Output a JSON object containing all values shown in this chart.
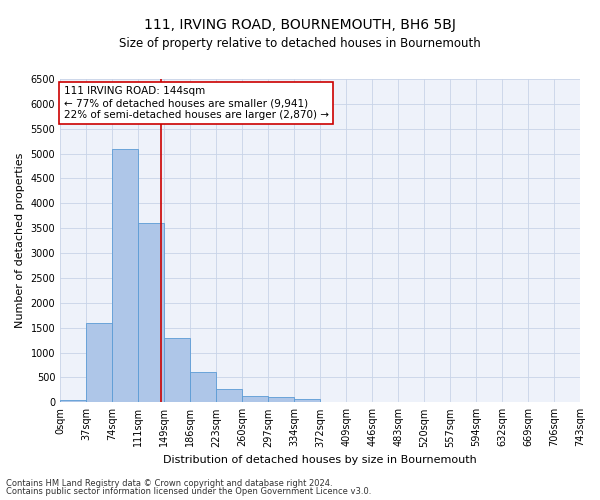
{
  "title": "111, IRVING ROAD, BOURNEMOUTH, BH6 5BJ",
  "subtitle": "Size of property relative to detached houses in Bournemouth",
  "xlabel": "Distribution of detached houses by size in Bournemouth",
  "ylabel": "Number of detached properties",
  "footnote1": "Contains HM Land Registry data © Crown copyright and database right 2024.",
  "footnote2": "Contains public sector information licensed under the Open Government Licence v3.0.",
  "property_label": "111 IRVING ROAD: 144sqm",
  "annotation_line1": "← 77% of detached houses are smaller (9,941)",
  "annotation_line2": "22% of semi-detached houses are larger (2,870) →",
  "bar_edges": [
    0,
    37,
    74,
    111,
    149,
    186,
    223,
    260,
    297,
    334,
    372,
    409,
    446,
    483,
    520,
    557,
    594,
    632,
    669,
    706,
    743
  ],
  "bar_heights": [
    50,
    1600,
    5100,
    3600,
    1300,
    600,
    270,
    120,
    100,
    70,
    0,
    0,
    0,
    0,
    0,
    0,
    0,
    0,
    0,
    0
  ],
  "bar_color": "#aec6e8",
  "bar_edge_color": "#5b9bd5",
  "vline_color": "#cc0000",
  "vline_x": 144,
  "ylim_max": 6500,
  "yticks": [
    0,
    500,
    1000,
    1500,
    2000,
    2500,
    3000,
    3500,
    4000,
    4500,
    5000,
    5500,
    6000,
    6500
  ],
  "grid_color": "#c8d4e8",
  "background_color": "#eef2fa",
  "annotation_box_facecolor": "#ffffff",
  "annotation_box_edgecolor": "#cc0000",
  "title_fontsize": 10,
  "subtitle_fontsize": 8.5,
  "ylabel_fontsize": 8,
  "xlabel_fontsize": 8,
  "tick_fontsize": 7,
  "annotation_fontsize": 7.5,
  "footnote_fontsize": 6
}
